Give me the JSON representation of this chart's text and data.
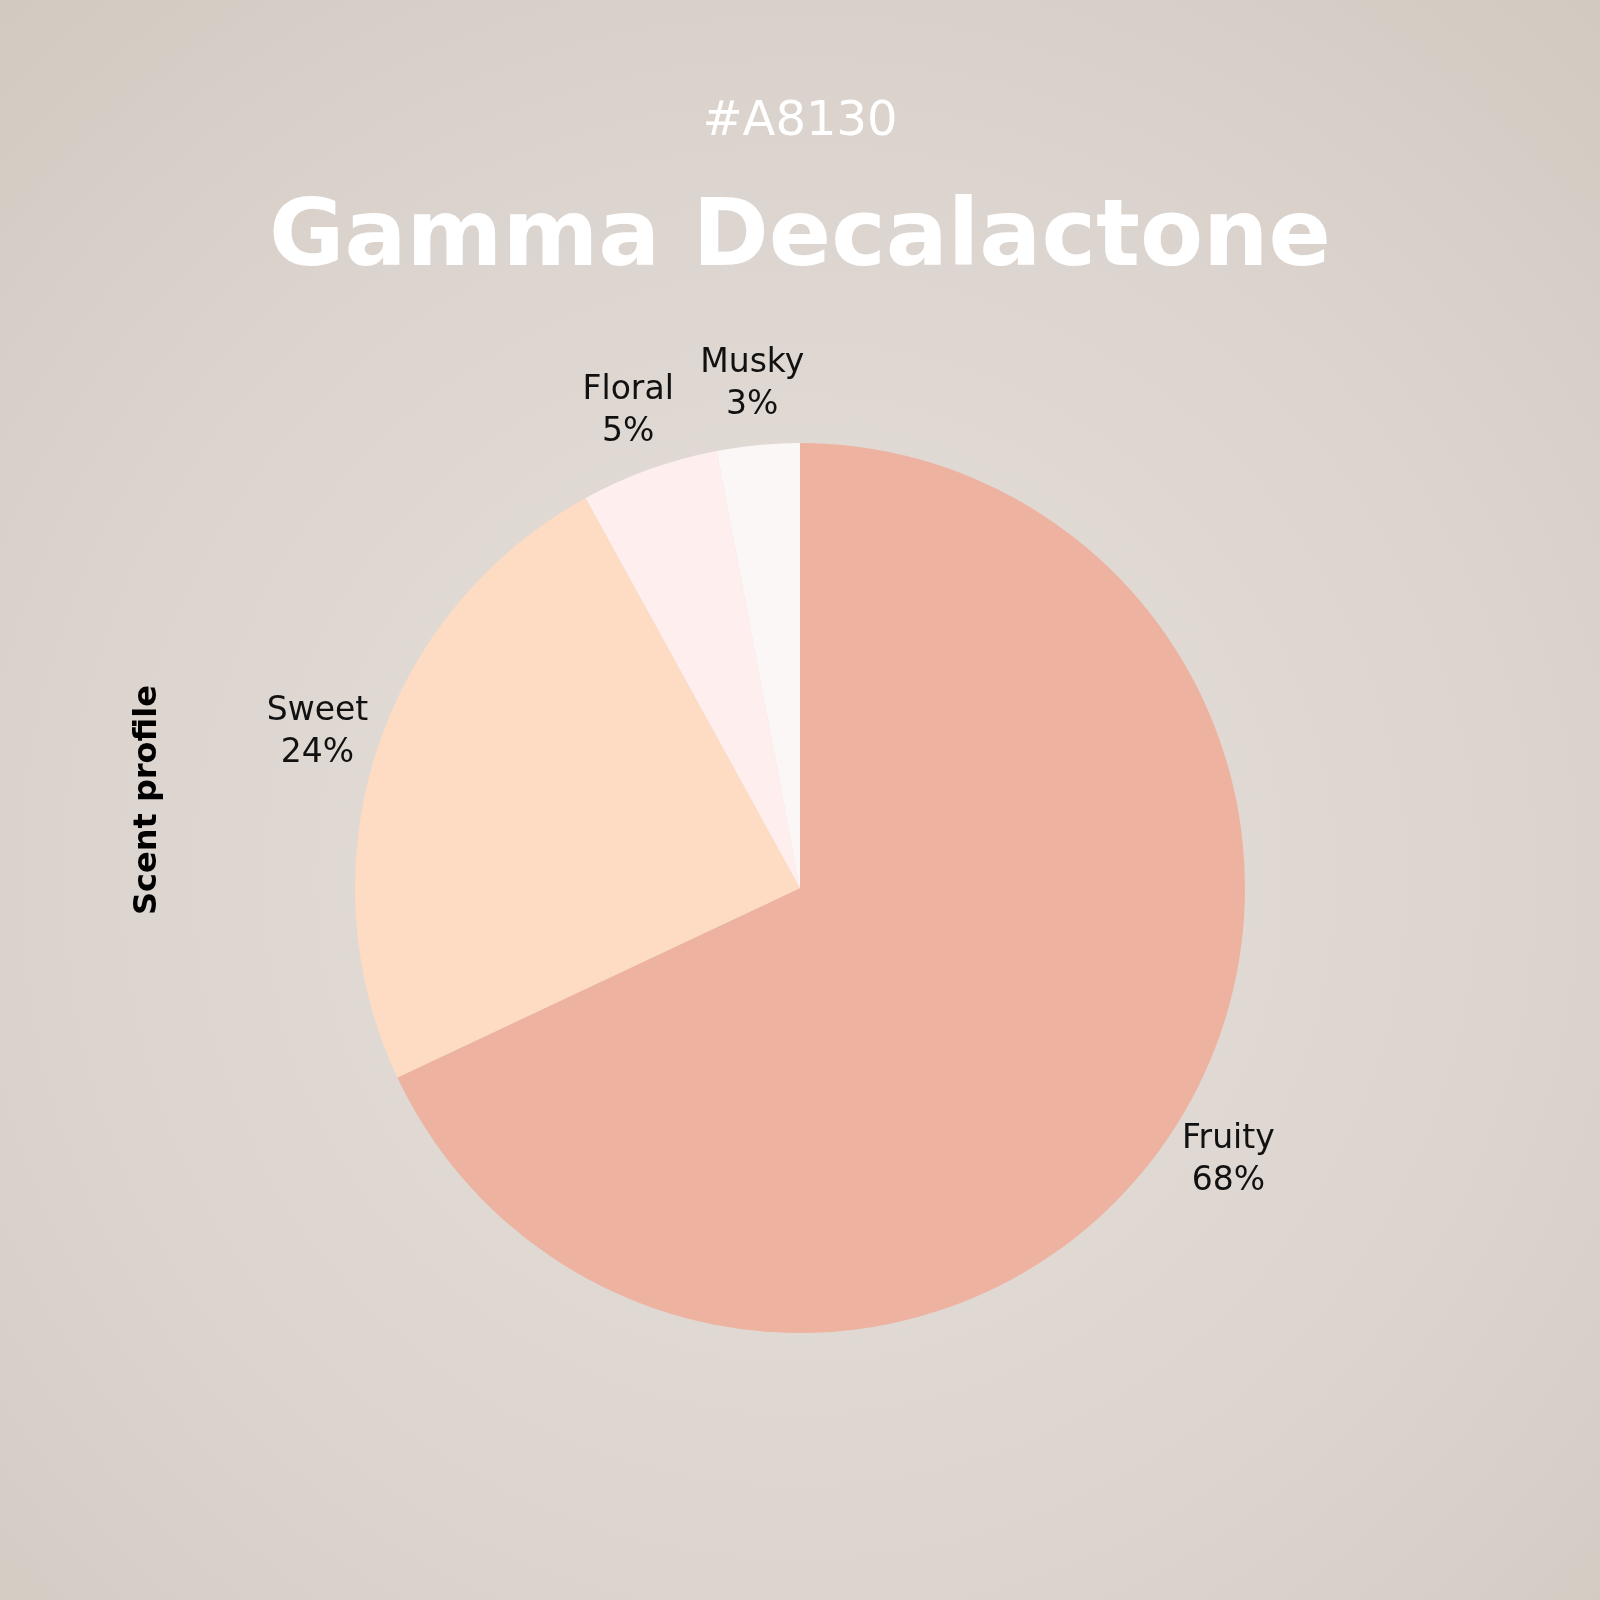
{
  "chart_data": {
    "type": "pie",
    "title": "Gamma Decalactone",
    "subtitle": "#A8130",
    "ylabel": "Scent profile",
    "categories": [
      "Fruity",
      "Sweet",
      "Floral",
      "Musky"
    ],
    "values": [
      68,
      24,
      5,
      3
    ],
    "colors": [
      "#edb3a0",
      "#fedbc3",
      "#feeeed",
      "#faf7f6"
    ],
    "value_labels": [
      "68%",
      "24%",
      "5%",
      "3%"
    ]
  }
}
